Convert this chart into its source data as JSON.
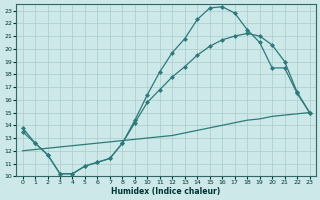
{
  "xlabel": "Humidex (Indice chaleur)",
  "background_color": "#cce8e8",
  "grid_color": "#aacccc",
  "line_color": "#2d7a7a",
  "xlim": [
    -0.5,
    23.5
  ],
  "ylim": [
    10,
    23.5
  ],
  "xticks": [
    0,
    1,
    2,
    3,
    4,
    5,
    6,
    7,
    8,
    9,
    10,
    11,
    12,
    13,
    14,
    15,
    16,
    17,
    18,
    19,
    20,
    21,
    22,
    23
  ],
  "yticks": [
    10,
    11,
    12,
    13,
    14,
    15,
    16,
    17,
    18,
    19,
    20,
    21,
    22,
    23
  ],
  "curve1_x": [
    0,
    1,
    2,
    3,
    4,
    5,
    6,
    7,
    8,
    9,
    10,
    11,
    12,
    13,
    14,
    15,
    16,
    17,
    18,
    19,
    20,
    21,
    22,
    23
  ],
  "curve1_y": [
    13.8,
    12.6,
    11.7,
    10.2,
    10.2,
    10.8,
    11.1,
    11.4,
    12.6,
    14.4,
    16.4,
    18.2,
    19.7,
    20.8,
    22.3,
    23.2,
    23.3,
    22.8,
    21.5,
    20.5,
    18.5,
    18.5,
    16.5,
    15.0
  ],
  "curve2_x": [
    0,
    1,
    2,
    3,
    4,
    5,
    6,
    7,
    8,
    9,
    10,
    11,
    12,
    13,
    14,
    15,
    16,
    17,
    18,
    19,
    20,
    21,
    22,
    23
  ],
  "curve2_y": [
    13.5,
    12.6,
    11.7,
    10.2,
    10.2,
    10.8,
    11.1,
    11.4,
    12.6,
    14.2,
    15.8,
    16.8,
    17.8,
    18.6,
    19.5,
    20.2,
    20.7,
    21.0,
    21.2,
    21.0,
    20.3,
    19.0,
    16.6,
    15.0
  ],
  "curve3_x": [
    0,
    1,
    2,
    3,
    4,
    5,
    6,
    7,
    8,
    9,
    10,
    11,
    12,
    13,
    14,
    15,
    16,
    17,
    18,
    19,
    20,
    21,
    22,
    23
  ],
  "curve3_y": [
    12.0,
    12.1,
    12.2,
    12.3,
    12.4,
    12.5,
    12.6,
    12.7,
    12.8,
    12.9,
    13.0,
    13.1,
    13.2,
    13.4,
    13.6,
    13.8,
    14.0,
    14.2,
    14.4,
    14.5,
    14.7,
    14.8,
    14.9,
    15.0
  ]
}
